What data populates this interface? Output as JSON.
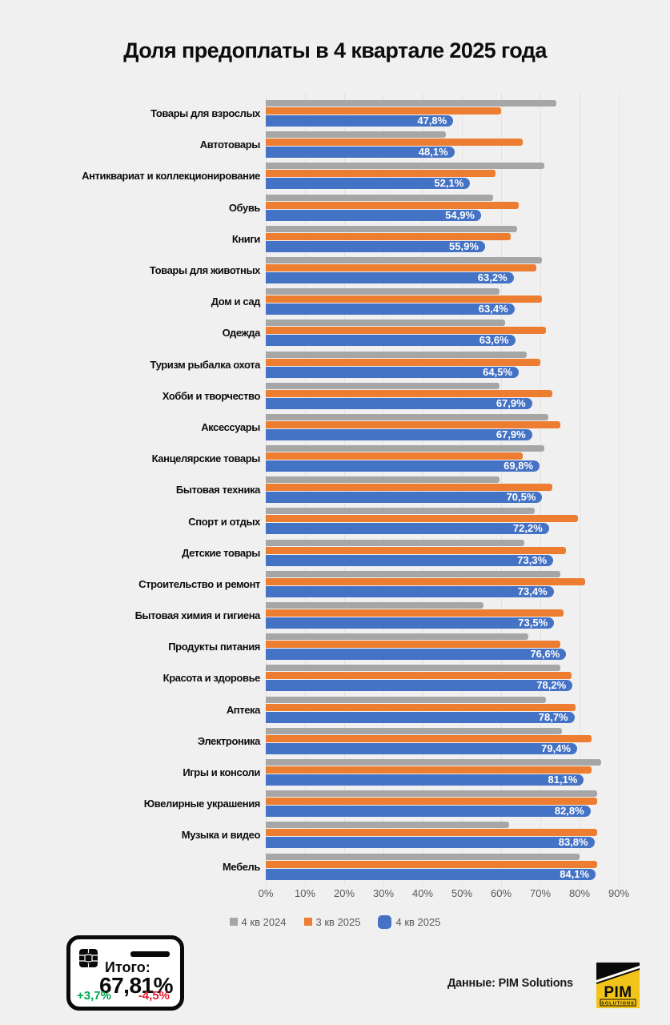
{
  "title": "Доля предоплаты в 4 квартале 2025 года",
  "chart_data": {
    "type": "bar",
    "orientation": "horizontal",
    "title": "Доля предоплаты в 4 квартале 2025 года",
    "xlim": [
      0,
      90
    ],
    "x_ticks": [
      "0%",
      "10%",
      "20%",
      "30%",
      "40%",
      "50%",
      "60%",
      "70%",
      "80%",
      "90%"
    ],
    "grid": true,
    "legend_position": "bottom",
    "categories": [
      "Товары для взрослых",
      "Автотовары",
      "Антиквариат и коллекционирование",
      "Обувь",
      "Книги",
      "Товары для животных",
      "Дом и сад",
      "Одежда",
      "Туризм рыбалка охота",
      "Хобби и творчество",
      "Аксессуары",
      "Канцелярские товары",
      "Бытовая техника",
      "Спорт и отдых",
      "Детские товары",
      "Строительство и ремонт",
      "Бытовая химия и гигиена",
      "Продукты питания",
      "Красота и здоровье",
      "Аптека",
      "Электроника",
      "Игры и консоли",
      "Ювелирные украшения",
      "Музыка и видео",
      "Мебель"
    ],
    "series": [
      {
        "name": "4 кв 2024",
        "color": "#a6a6a6",
        "values": [
          74,
          46,
          71,
          58,
          64,
          70.5,
          59.5,
          61,
          66.5,
          59.5,
          72,
          71,
          59.5,
          68.5,
          66,
          75,
          55.5,
          67,
          75,
          71.5,
          75.5,
          85.5,
          84.5,
          62,
          80
        ]
      },
      {
        "name": "3 кв 2025",
        "color": "#ed7d31",
        "values": [
          60,
          65.5,
          58.5,
          64.5,
          62.5,
          69,
          70.5,
          71.5,
          70,
          73,
          75,
          65.5,
          73,
          79.5,
          76.5,
          81.5,
          76,
          75,
          78,
          79,
          83,
          83,
          84.5,
          84.5,
          84.5
        ]
      },
      {
        "name": "4 кв 2025",
        "color": "#4472c4",
        "values": [
          47.8,
          48.1,
          52.1,
          54.9,
          55.9,
          63.2,
          63.4,
          63.6,
          64.5,
          67.9,
          67.9,
          69.8,
          70.5,
          72.2,
          73.3,
          73.4,
          73.5,
          76.6,
          78.2,
          78.7,
          79.4,
          81.1,
          82.8,
          83.8,
          84.1
        ],
        "labels": [
          "47,8%",
          "48,1%",
          "52,1%",
          "54,9%",
          "55,9%",
          "63,2%",
          "63,4%",
          "63,6%",
          "64,5%",
          "67,9%",
          "67,9%",
          "69,8%",
          "70,5%",
          "72,2%",
          "73,3%",
          "73,4%",
          "73,5%",
          "76,6%",
          "78,2%",
          "78,7%",
          "79,4%",
          "81,1%",
          "82,8%",
          "83,8%",
          "84,1%"
        ]
      }
    ]
  },
  "summary_card": {
    "label": "Итого:",
    "value": "67,81%",
    "delta_up": "+3,7%",
    "delta_down": "-4,5%",
    "up_color": "#00a651",
    "down_color": "#e8212e"
  },
  "footer": {
    "source_label": "Данные: PIM Solutions",
    "logo_line1": "PIM",
    "logo_line2": "SOLUTIONS",
    "logo_bg": "#f2c318"
  }
}
